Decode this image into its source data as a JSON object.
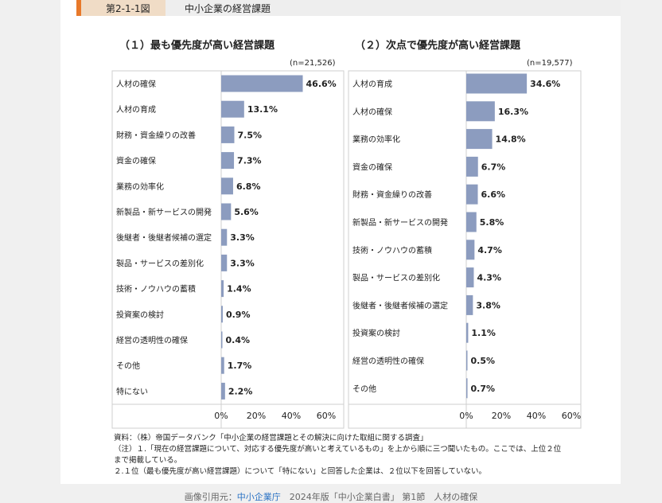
{
  "header": {
    "figure_number": "第2-1-1図",
    "figure_title": "中小企業の経営課題"
  },
  "chart_data": [
    {
      "type": "bar",
      "orientation": "horizontal",
      "title": "（１）最も優先度が高い経営課題",
      "n_label": "(n=21,526)",
      "categories": [
        "人材の確保",
        "人材の育成",
        "財務・資金繰りの改善",
        "資金の確保",
        "業務の効率化",
        "新製品・新サービスの開発",
        "後継者・後継者候補の選定",
        "製品・サービスの差別化",
        "技術・ノウハウの蓄積",
        "投資案の検討",
        "経営の透明性の確保",
        "その他",
        "特にない"
      ],
      "values": [
        46.6,
        13.1,
        7.5,
        7.3,
        6.8,
        5.6,
        3.3,
        3.3,
        1.4,
        0.9,
        0.4,
        1.7,
        2.2
      ],
      "value_labels": [
        "46.6%",
        "13.1%",
        "7.5%",
        "7.3%",
        "6.8%",
        "5.6%",
        "3.3%",
        "3.3%",
        "1.4%",
        "0.9%",
        "0.4%",
        "1.7%",
        "2.2%"
      ],
      "xlim": [
        0,
        60
      ],
      "xticks": [
        "0%",
        "20%",
        "40%",
        "60%"
      ],
      "bar_color": "#8c9cbf"
    },
    {
      "type": "bar",
      "orientation": "horizontal",
      "title": "（２）次点で優先度が高い経営課題",
      "n_label": "(n=19,577)",
      "categories": [
        "人材の育成",
        "人材の確保",
        "業務の効率化",
        "資金の確保",
        "財務・資金繰りの改善",
        "新製品・新サービスの開発",
        "技術・ノウハウの蓄積",
        "製品・サービスの差別化",
        "後継者・後継者候補の選定",
        "投資案の検討",
        "経営の透明性の確保",
        "その他"
      ],
      "values": [
        34.6,
        16.3,
        14.8,
        6.7,
        6.6,
        5.8,
        4.7,
        4.3,
        3.8,
        1.1,
        0.5,
        0.7
      ],
      "value_labels": [
        "34.6%",
        "16.3%",
        "14.8%",
        "6.7%",
        "6.6%",
        "5.8%",
        "4.7%",
        "4.3%",
        "3.8%",
        "1.1%",
        "0.5%",
        "0.7%"
      ],
      "xlim": [
        0,
        60
      ],
      "xticks": [
        "0%",
        "20%",
        "40%",
        "60%"
      ],
      "bar_color": "#8c9cbf"
    }
  ],
  "notes": {
    "source": "資料：（株）帝国データバンク「中小企業の経営課題とその解決に向けた取組に関する調査」",
    "note1a": "（注）１.「現在の経営課題について、対応する優先度が高いと考えているもの」を上から順に三つ聞いたもの。ここでは、上位２位",
    "note1b": "まで掲載している。",
    "note2": "２.１位（最も優先度が高い経営課題）について「特にない」と回答した企業は、２位以下を回答していない。"
  },
  "footer": {
    "prefix": "画像引用元：",
    "link": "中小企業庁",
    "suffix": "　2024年版「中小企業白書」 第1節　人材の確保"
  }
}
